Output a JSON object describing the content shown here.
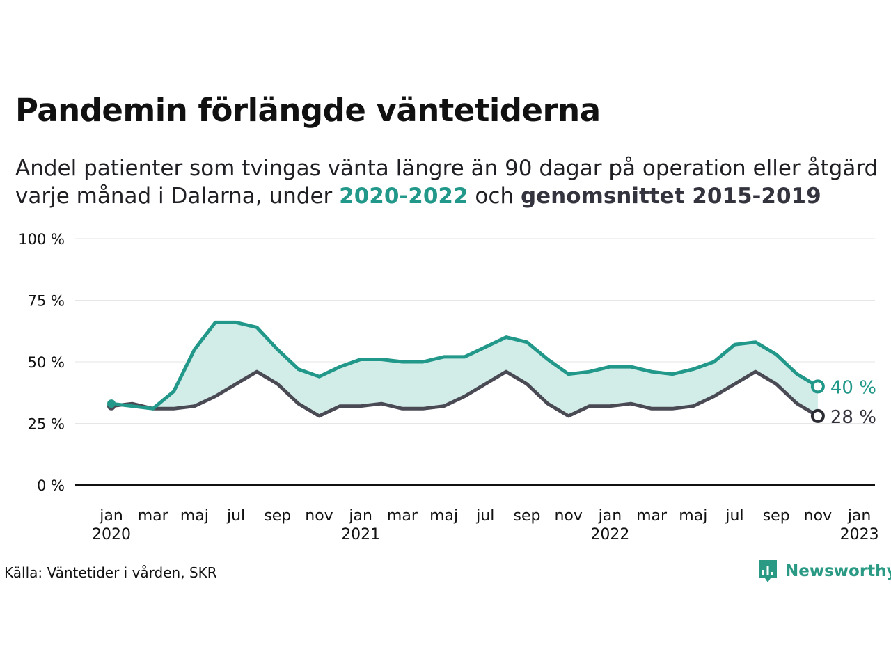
{
  "title": "Pandemin förlängde väntetiderna",
  "subtitle": {
    "line1": "Andel patienter som tvingas vänta längre än 90 dagar på operation eller åtgärd",
    "line2_pre": "varje månad i Dalarna, under ",
    "line2_hl1": "2020-2022",
    "line2_mid": " och ",
    "line2_hl2": "genomsnittet 2015-2019"
  },
  "source": "Källa: Väntetider i vården, SKR",
  "brand": {
    "name": "Newsworthy",
    "icon": "newsworthy-logo-icon"
  },
  "colors": {
    "series_current": "#22988a",
    "series_average": "#4a4a55",
    "area_fill": "#d2ece7",
    "axis": "#111111",
    "grid": "#e6e6e6",
    "average_label": "#34343f"
  },
  "chart_data": {
    "type": "line",
    "title": "Pandemin förlängde väntetiderna",
    "x": [
      "2020-01",
      "2020-02",
      "2020-03",
      "2020-04",
      "2020-05",
      "2020-06",
      "2020-07",
      "2020-08",
      "2020-09",
      "2020-10",
      "2020-11",
      "2020-12",
      "2021-01",
      "2021-02",
      "2021-03",
      "2021-04",
      "2021-05",
      "2021-06",
      "2021-07",
      "2021-08",
      "2021-09",
      "2021-10",
      "2021-11",
      "2021-12",
      "2022-01",
      "2022-02",
      "2022-03",
      "2022-04",
      "2022-05",
      "2022-06",
      "2022-07",
      "2022-08",
      "2022-09",
      "2022-10",
      "2022-11"
    ],
    "series": [
      {
        "name": "2020-2022",
        "values": [
          33,
          32,
          31,
          38,
          55,
          66,
          66,
          64,
          55,
          47,
          44,
          48,
          51,
          51,
          50,
          50,
          52,
          52,
          56,
          60,
          58,
          51,
          45,
          46,
          48,
          48,
          46,
          45,
          47,
          50,
          57,
          58,
          53,
          45,
          40
        ]
      },
      {
        "name": "genomsnittet 2015-2019",
        "values": [
          32,
          33,
          31,
          31,
          32,
          36,
          41,
          46,
          41,
          33,
          28,
          32,
          32,
          33,
          31,
          31,
          32,
          36,
          41,
          46,
          41,
          33,
          28,
          32,
          32,
          33,
          31,
          31,
          32,
          36,
          41,
          46,
          41,
          33,
          28
        ]
      }
    ],
    "end_labels": [
      "40 %",
      "28 %"
    ],
    "ylim": [
      0,
      100
    ],
    "y_ticks": [
      0,
      25,
      50,
      75,
      100
    ],
    "y_tick_labels": [
      "0 %",
      "25 %",
      "50 %",
      "75 %",
      "100 %"
    ],
    "x_tick_labels": [
      {
        "month": "jan",
        "year": "2020"
      },
      {
        "month": "mar",
        "year": ""
      },
      {
        "month": "maj",
        "year": ""
      },
      {
        "month": "jul",
        "year": ""
      },
      {
        "month": "sep",
        "year": ""
      },
      {
        "month": "nov",
        "year": ""
      },
      {
        "month": "jan",
        "year": "2021"
      },
      {
        "month": "mar",
        "year": ""
      },
      {
        "month": "maj",
        "year": ""
      },
      {
        "month": "jul",
        "year": ""
      },
      {
        "month": "sep",
        "year": ""
      },
      {
        "month": "nov",
        "year": ""
      },
      {
        "month": "jan",
        "year": "2022"
      },
      {
        "month": "mar",
        "year": ""
      },
      {
        "month": "maj",
        "year": ""
      },
      {
        "month": "jul",
        "year": ""
      },
      {
        "month": "sep",
        "year": ""
      },
      {
        "month": "nov",
        "year": ""
      },
      {
        "month": "jan",
        "year": "2023"
      }
    ],
    "grid": true,
    "legend": "none"
  }
}
